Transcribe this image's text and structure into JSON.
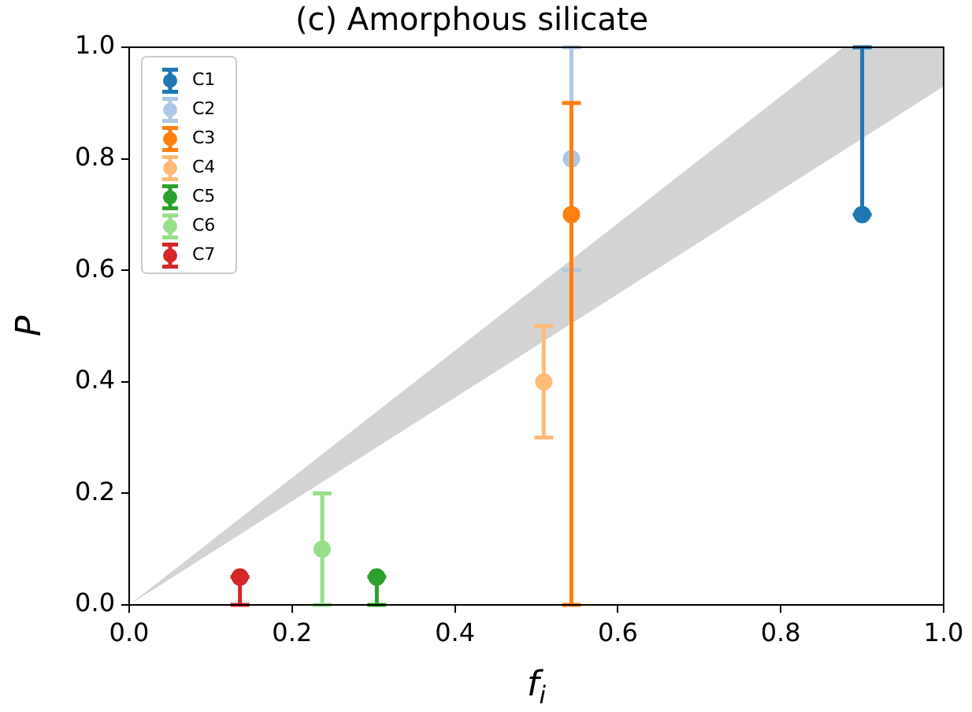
{
  "chart_data": {
    "type": "scatter",
    "title": "(c) Amorphous silicate",
    "xlabel": "f$_{i}$",
    "ylabel": "P",
    "xlim": [
      0,
      1
    ],
    "ylim": [
      0,
      1
    ],
    "xticks": [
      {
        "value": 0,
        "label": "0.0"
      },
      {
        "value": 0.2,
        "label": "0.2"
      },
      {
        "value": 0.4,
        "label": "0.4"
      },
      {
        "value": 0.6,
        "label": "0.6"
      },
      {
        "value": 0.8,
        "label": "0.8"
      },
      {
        "value": 1,
        "label": "1.0"
      }
    ],
    "yticks": [
      {
        "value": 0,
        "label": "0.0"
      },
      {
        "value": 0.2,
        "label": "0.2"
      },
      {
        "value": 0.4,
        "label": "0.4"
      },
      {
        "value": 0.6,
        "label": "0.6"
      },
      {
        "value": 0.8,
        "label": "0.8"
      },
      {
        "value": 1,
        "label": "1.0"
      }
    ],
    "grid": false,
    "legend": "top left",
    "marker": "circle",
    "series": [
      {
        "type": "area",
        "color": "#d3d3d3",
        "x": [
          0,
          0.877,
          1
        ],
        "values": [
          null,
          null,
          null
        ],
        "lower": [
          0,
          0.815,
          0.93
        ],
        "upper": [
          0,
          1,
          1
        ]
      },
      {
        "name": "C1",
        "color": "#1f77b4",
        "x": [
          0.9
        ],
        "values": [
          0.7
        ],
        "errors": [
          [
            0.7,
            1.0
          ]
        ]
      },
      {
        "name": "C2",
        "color": "#aec7e8",
        "x": [
          0.543
        ],
        "values": [
          0.8
        ],
        "errors": [
          [
            0.6,
            1.0
          ]
        ]
      },
      {
        "name": "C3",
        "color": "#ff7f0e",
        "x": [
          0.543
        ],
        "values": [
          0.7
        ],
        "errors": [
          [
            0,
            0.9
          ]
        ]
      },
      {
        "name": "C4",
        "color": "#ffbb78",
        "x": [
          0.509
        ],
        "values": [
          0.4
        ],
        "errors": [
          [
            0.3,
            0.5
          ]
        ]
      },
      {
        "name": "C5",
        "color": "#2ca02c",
        "x": [
          0.304
        ],
        "values": [
          0.05
        ],
        "errors": [
          [
            0,
            0.05
          ]
        ]
      },
      {
        "name": "C6",
        "color": "#98df8a",
        "x": [
          0.237
        ],
        "values": [
          0.1
        ],
        "errors": [
          [
            0,
            0.2
          ]
        ]
      },
      {
        "name": "C7",
        "color": "#d62728",
        "x": [
          0.136
        ],
        "values": [
          0.05
        ],
        "errors": [
          [
            0,
            0.05
          ]
        ]
      }
    ]
  }
}
